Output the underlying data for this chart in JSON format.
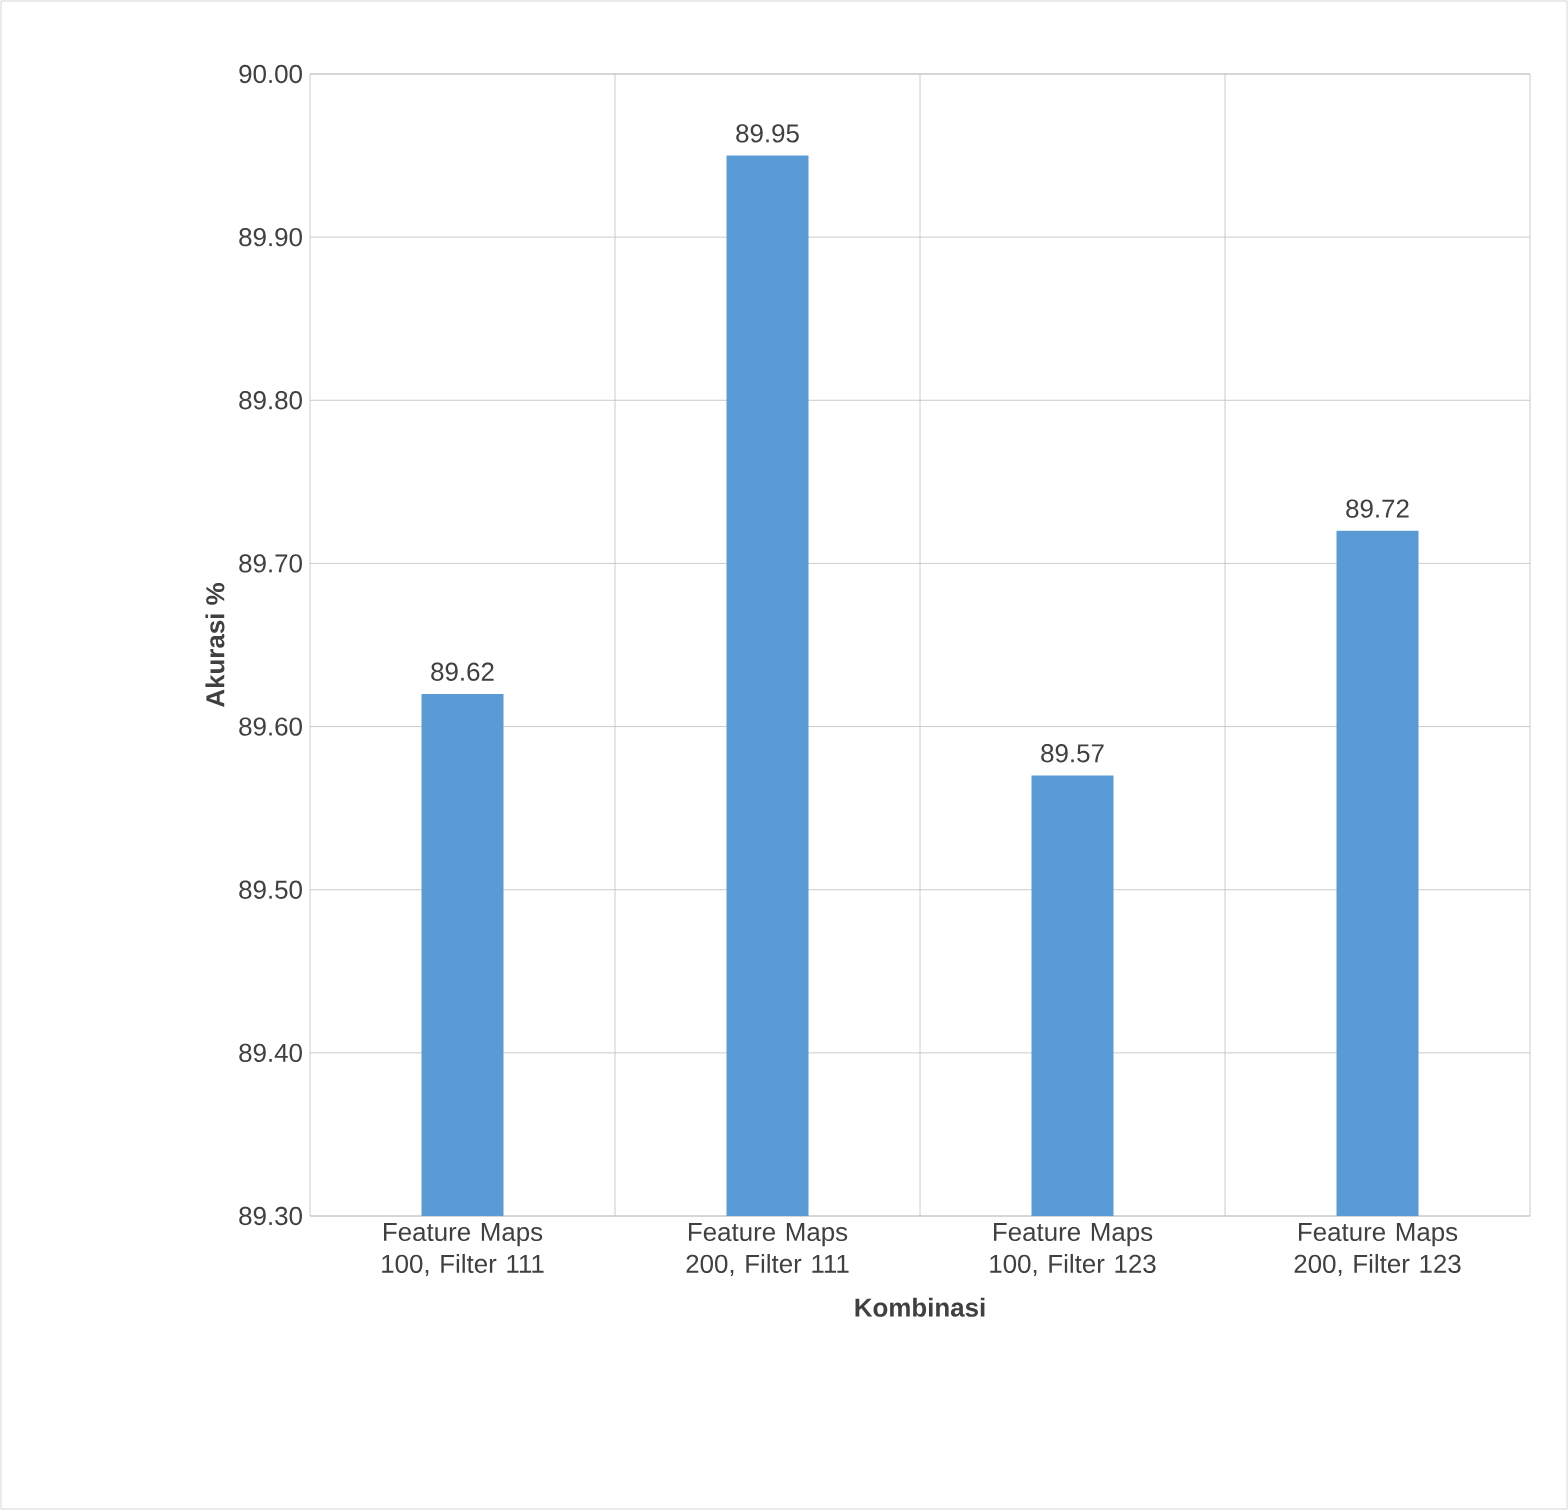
{
  "chart_data": {
    "type": "bar",
    "xlabel": "Kombinasi",
    "ylabel": "Akurasi %",
    "categories": [
      "Feature Maps 100, Filter 111",
      "Feature Maps 200, Filter 111",
      "Feature Maps 100, Filter 123",
      "Feature Maps 200, Filter 123"
    ],
    "values": [
      89.62,
      89.95,
      89.57,
      89.72
    ],
    "color": "#5b9bd5",
    "ylim": [
      89.3,
      90.0
    ],
    "yticks": [
      {
        "value": 89.3,
        "label": "89.30"
      },
      {
        "value": 89.4,
        "label": "89.40"
      },
      {
        "value": 89.5,
        "label": "89.50"
      },
      {
        "value": 89.6,
        "label": "89.60"
      },
      {
        "value": 89.7,
        "label": "89.70"
      },
      {
        "value": 89.8,
        "label": "89.80"
      },
      {
        "value": 89.9,
        "label": "89.90"
      },
      {
        "value": 90.0,
        "label": "90.00"
      }
    ],
    "grid": true,
    "data_labels": true
  }
}
